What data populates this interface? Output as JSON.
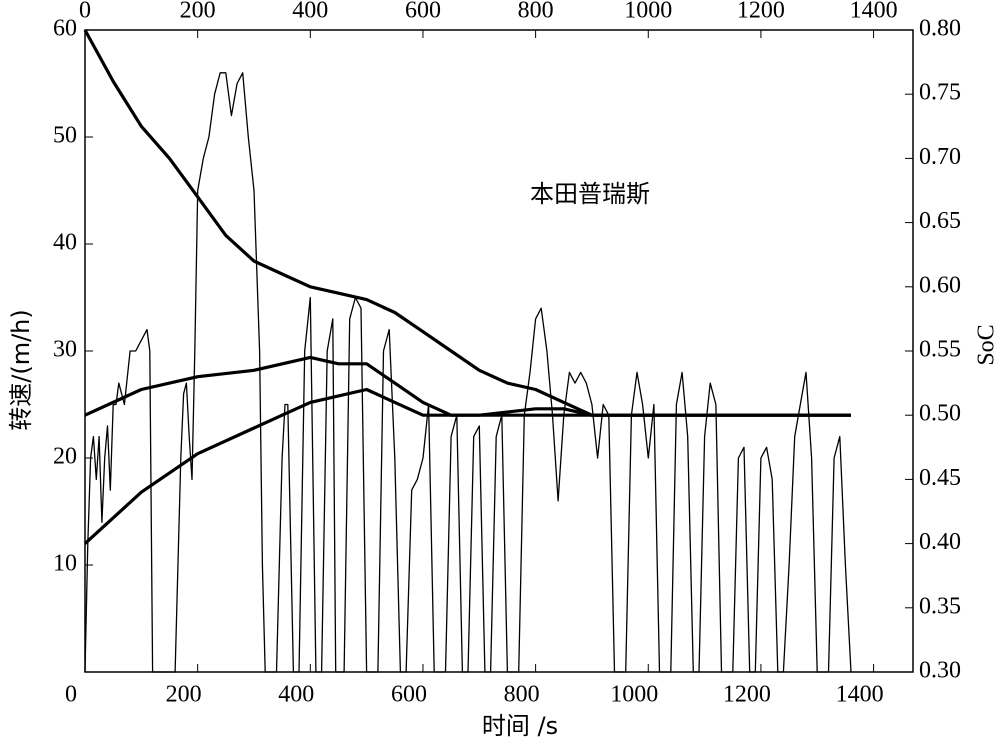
{
  "chart_data": {
    "type": "line",
    "annotation": "本田普瑞斯",
    "x_label": "时间 /s",
    "y_label": "转速/(m/h)",
    "y2_label": "SoC",
    "xlim": [
      0,
      1470
    ],
    "xticks": [
      0,
      200,
      400,
      600,
      800,
      1000,
      1200,
      1400
    ],
    "ylim": [
      0,
      60
    ],
    "yticks": [
      10,
      20,
      30,
      40,
      50,
      60
    ],
    "y2lim": [
      0.3,
      0.8
    ],
    "y2ticks": [
      {
        "value": 0.3,
        "label": "0.30"
      },
      0.35,
      {
        "value": 0.4,
        "label": "0.40"
      },
      0.45,
      {
        "value": 0.5,
        "label": "0.50"
      },
      0.55,
      {
        "value": 0.6,
        "label": "0.60"
      },
      0.65,
      {
        "value": 0.7,
        "label": "0.70"
      },
      0.75,
      {
        "value": 0.8,
        "label": "0.80"
      }
    ],
    "series": [
      {
        "color": "#000000",
        "width": 1.3,
        "x": [
          0,
          5,
          10,
          15,
          20,
          25,
          30,
          35,
          40,
          45,
          50,
          55,
          60,
          70,
          80,
          90,
          100,
          110,
          115,
          120,
          125,
          150,
          160,
          170,
          175,
          180,
          185,
          190,
          195,
          200,
          210,
          220,
          230,
          240,
          250,
          260,
          270,
          280,
          290,
          300,
          310,
          315,
          320,
          340,
          350,
          355,
          360,
          370,
          380,
          390,
          400,
          410,
          420,
          430,
          440,
          445,
          460,
          470,
          480,
          490,
          500,
          520,
          530,
          540,
          550,
          560,
          570,
          580,
          590,
          600,
          610,
          620,
          640,
          650,
          660,
          670,
          680,
          690,
          700,
          710,
          720,
          730,
          740,
          750,
          770,
          780,
          790,
          800,
          810,
          820,
          830,
          840,
          850,
          860,
          870,
          880,
          890,
          900,
          910,
          920,
          930,
          940,
          960,
          970,
          980,
          990,
          1000,
          1010,
          1020,
          1040,
          1050,
          1060,
          1070,
          1080,
          1090,
          1100,
          1110,
          1120,
          1130,
          1150,
          1160,
          1170,
          1180,
          1190,
          1200,
          1210,
          1220,
          1230,
          1240,
          1250,
          1260,
          1270,
          1280,
          1290,
          1300,
          1320,
          1330,
          1340,
          1350,
          1360
        ],
        "values": [
          0,
          12,
          20,
          22,
          18,
          22,
          14,
          20,
          23,
          17,
          25,
          25,
          27,
          25,
          30,
          30,
          31,
          32,
          30,
          0,
          0,
          0,
          0,
          20,
          26,
          27,
          22,
          18,
          30,
          45,
          48,
          50,
          54,
          56,
          56,
          52,
          55,
          56,
          50,
          45,
          30,
          10,
          0,
          0,
          20,
          25,
          25,
          0,
          0,
          30,
          35,
          0,
          0,
          30,
          33,
          0,
          0,
          33,
          35,
          34,
          0,
          0,
          30,
          32,
          20,
          0,
          0,
          17,
          18,
          20,
          25,
          0,
          0,
          22,
          24,
          0,
          0,
          22,
          23,
          0,
          0,
          22,
          24,
          0,
          0,
          24,
          28,
          33,
          34,
          30,
          24,
          16,
          24,
          28,
          27,
          28,
          27,
          25,
          20,
          25,
          24,
          0,
          0,
          24,
          28,
          25,
          20,
          25,
          0,
          0,
          25,
          28,
          22,
          0,
          0,
          22,
          27,
          25,
          0,
          0,
          20,
          21,
          0,
          0,
          20,
          21,
          18,
          0,
          0,
          10,
          22,
          25,
          28,
          20,
          0,
          0,
          20,
          22,
          10,
          0
        ]
      },
      {
        "color": "#000000",
        "width": 3.2,
        "axis": "y2",
        "x": [
          0,
          50,
          100,
          150,
          200,
          250,
          300,
          350,
          400,
          450,
          500,
          550,
          600,
          650,
          700,
          750,
          800,
          850,
          900,
          1000,
          1100,
          1200,
          1300,
          1360
        ],
        "values": [
          0.8,
          0.76,
          0.725,
          0.7,
          0.67,
          0.64,
          0.62,
          0.61,
          0.6,
          0.595,
          0.59,
          0.58,
          0.565,
          0.55,
          0.535,
          0.525,
          0.52,
          0.51,
          0.5,
          0.5,
          0.5,
          0.5,
          0.5,
          0.5
        ]
      },
      {
        "color": "#000000",
        "width": 3.2,
        "axis": "y2",
        "x": [
          0,
          100,
          200,
          300,
          400,
          450,
          500,
          550,
          600,
          650,
          700,
          800,
          850,
          900,
          1000,
          1100,
          1200,
          1300,
          1360
        ],
        "values": [
          0.5,
          0.52,
          0.53,
          0.535,
          0.545,
          0.54,
          0.54,
          0.525,
          0.51,
          0.5,
          0.5,
          0.505,
          0.505,
          0.5,
          0.5,
          0.5,
          0.5,
          0.5,
          0.5
        ]
      },
      {
        "color": "#000000",
        "width": 3.2,
        "axis": "y2",
        "x": [
          0,
          100,
          200,
          300,
          350,
          400,
          450,
          500,
          550,
          600,
          700,
          800,
          900,
          1000,
          1100,
          1200,
          1300,
          1360
        ],
        "values": [
          0.4,
          0.44,
          0.47,
          0.49,
          0.5,
          0.51,
          0.515,
          0.52,
          0.51,
          0.5,
          0.5,
          0.5,
          0.5,
          0.5,
          0.5,
          0.5,
          0.5,
          0.5
        ]
      }
    ]
  }
}
